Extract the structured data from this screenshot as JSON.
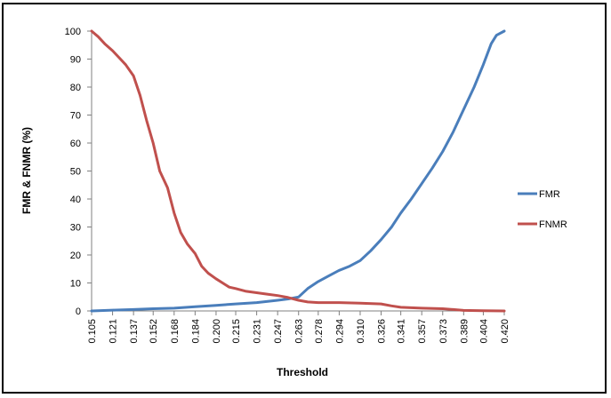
{
  "chart_data": {
    "type": "line",
    "title": "",
    "xlabel": "Threshold",
    "ylabel": "FMR & FNMR (%)",
    "ylim": [
      0,
      100
    ],
    "yticks": [
      0,
      10,
      20,
      30,
      40,
      50,
      60,
      70,
      80,
      90,
      100
    ],
    "x_categories": [
      "0.105",
      "0.121",
      "0.137",
      "0.152",
      "0.168",
      "0.184",
      "0.200",
      "0.215",
      "0.231",
      "0.247",
      "0.263",
      "0.278",
      "0.294",
      "0.310",
      "0.326",
      "0.341",
      "0.357",
      "0.373",
      "0.389",
      "0.404",
      "0.420"
    ],
    "grid": false,
    "legend": "right",
    "series": [
      {
        "name": "FMR",
        "color": "#4a7ebb",
        "points": [
          [
            0.105,
            0
          ],
          [
            0.121,
            0.3
          ],
          [
            0.137,
            0.5
          ],
          [
            0.152,
            0.8
          ],
          [
            0.168,
            1.0
          ],
          [
            0.184,
            1.5
          ],
          [
            0.2,
            2.0
          ],
          [
            0.215,
            2.5
          ],
          [
            0.231,
            3.0
          ],
          [
            0.247,
            3.8
          ],
          [
            0.255,
            4.3
          ],
          [
            0.263,
            5.0
          ],
          [
            0.27,
            8.0
          ],
          [
            0.278,
            10.5
          ],
          [
            0.286,
            12.5
          ],
          [
            0.294,
            14.5
          ],
          [
            0.302,
            16.0
          ],
          [
            0.31,
            18.0
          ],
          [
            0.318,
            21.5
          ],
          [
            0.326,
            25.5
          ],
          [
            0.334,
            30.0
          ],
          [
            0.341,
            35.0
          ],
          [
            0.349,
            40.0
          ],
          [
            0.357,
            45.5
          ],
          [
            0.365,
            51.0
          ],
          [
            0.373,
            57.0
          ],
          [
            0.381,
            64.0
          ],
          [
            0.389,
            72.0
          ],
          [
            0.397,
            80.0
          ],
          [
            0.404,
            88.0
          ],
          [
            0.41,
            95.5
          ],
          [
            0.414,
            98.5
          ],
          [
            0.42,
            100
          ]
        ]
      },
      {
        "name": "FNMR",
        "color": "#c0504d",
        "points": [
          [
            0.105,
            100
          ],
          [
            0.11,
            98.0
          ],
          [
            0.115,
            95.5
          ],
          [
            0.121,
            93.0
          ],
          [
            0.126,
            90.5
          ],
          [
            0.131,
            88.0
          ],
          [
            0.137,
            84.0
          ],
          [
            0.142,
            77.0
          ],
          [
            0.147,
            68.0
          ],
          [
            0.152,
            60.0
          ],
          [
            0.157,
            50.0
          ],
          [
            0.163,
            44.0
          ],
          [
            0.168,
            35.0
          ],
          [
            0.173,
            28.0
          ],
          [
            0.178,
            24.0
          ],
          [
            0.184,
            20.5
          ],
          [
            0.189,
            16.0
          ],
          [
            0.194,
            13.5
          ],
          [
            0.2,
            11.5
          ],
          [
            0.205,
            10.0
          ],
          [
            0.21,
            8.5
          ],
          [
            0.215,
            8.0
          ],
          [
            0.223,
            7.0
          ],
          [
            0.231,
            6.5
          ],
          [
            0.239,
            6.0
          ],
          [
            0.247,
            5.5
          ],
          [
            0.255,
            4.8
          ],
          [
            0.263,
            3.8
          ],
          [
            0.27,
            3.2
          ],
          [
            0.278,
            3.0
          ],
          [
            0.294,
            3.0
          ],
          [
            0.31,
            2.8
          ],
          [
            0.326,
            2.5
          ],
          [
            0.334,
            1.8
          ],
          [
            0.341,
            1.3
          ],
          [
            0.357,
            1.0
          ],
          [
            0.373,
            0.8
          ],
          [
            0.381,
            0.5
          ],
          [
            0.389,
            0.2
          ],
          [
            0.404,
            0.1
          ],
          [
            0.42,
            0
          ]
        ]
      }
    ]
  }
}
